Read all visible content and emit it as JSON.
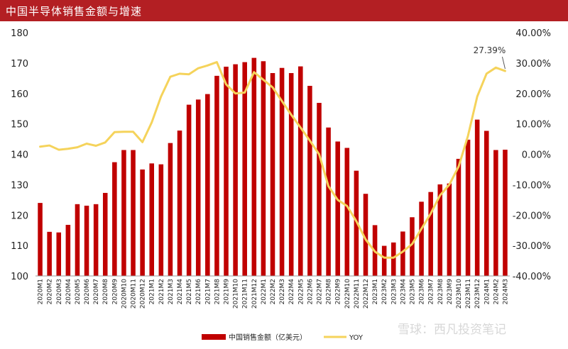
{
  "header": {
    "title": "中国半导体销售金额与增速"
  },
  "watermark": {
    "text": "雪球：西凡投资笔记"
  },
  "chart_data": {
    "type": "bar",
    "title": "中国半导体销售金额与增速",
    "categories": [
      "2020M1",
      "2020M2",
      "2020M3",
      "2020M4",
      "2020M5",
      "2020M6",
      "2020M7",
      "2020M8",
      "2020M9",
      "2020M10",
      "2020M11",
      "2020M12",
      "2021M1",
      "2021M2",
      "2021M3",
      "2021M4",
      "2021M5",
      "2021M6",
      "2021M7",
      "2021M8",
      "2021M9",
      "2021M10",
      "2021M11",
      "2021M12",
      "2022M1",
      "2022M2",
      "2022M3",
      "2022M4",
      "2022M5",
      "2022M6",
      "2022M7",
      "2022M8",
      "2022M9",
      "2022M10",
      "2022M11",
      "2022M12",
      "2023M1",
      "2023M2",
      "2023M3",
      "2023M4",
      "2023M5",
      "2023M6",
      "2023M7",
      "2023M8",
      "2023M9",
      "2023M10",
      "2023M11",
      "2023M12",
      "2024M1",
      "2024M2",
      "2024M3"
    ],
    "series": [
      {
        "name": "中国销售金额（亿美元）",
        "type": "bar",
        "axis": "left",
        "color": "#c00000",
        "values": [
          124,
          114.5,
          114.3,
          116.8,
          123.6,
          123.1,
          123.6,
          127.3,
          137.4,
          141.4,
          141.4,
          135.0,
          137.0,
          136.7,
          143.7,
          147.8,
          156.3,
          158.0,
          159.8,
          165.8,
          168.8,
          169.6,
          170.3,
          171.7,
          170.6,
          166.7,
          168.4,
          166.7,
          168.9,
          162.5,
          156.9,
          148.8,
          144.2,
          142.1,
          134.6,
          127.0,
          116.7,
          109.9,
          111.0,
          114.6,
          119.3,
          124.4,
          127.6,
          130.1,
          130.4,
          138.5,
          144.8,
          151.4,
          147.7,
          141.4,
          141.5
        ]
      },
      {
        "name": "YOY",
        "type": "line",
        "axis": "right",
        "color": "#f5d35b",
        "values": [
          2.5,
          2.9,
          1.5,
          1.8,
          2.3,
          3.5,
          2.8,
          3.9,
          7.3,
          7.4,
          7.4,
          4.0,
          10.5,
          19.0,
          25.5,
          26.5,
          26.3,
          28.3,
          29.2,
          30.3,
          23.0,
          20.0,
          20.3,
          27.0,
          24.5,
          22.0,
          17.5,
          13.0,
          8.8,
          4.5,
          0.0,
          -10.5,
          -15.0,
          -17.0,
          -22.0,
          -28.0,
          -32.0,
          -34.0,
          -34.0,
          -32.0,
          -29.5,
          -24.5,
          -19.5,
          -13.5,
          -10.0,
          -4.0,
          6.0,
          19.0,
          26.5,
          28.5,
          27.39
        ]
      }
    ],
    "y_left": {
      "min": 100,
      "max": 180,
      "ticks": [
        "100",
        "110",
        "120",
        "130",
        "140",
        "150",
        "160",
        "170",
        "180"
      ]
    },
    "y_right": {
      "min": -40,
      "max": 40,
      "ticks": [
        "-40.00%",
        "-30.00%",
        "-20.00%",
        "-10.00%",
        "0.00%",
        "10.00%",
        "20.00%",
        "30.00%",
        "40.00%"
      ]
    },
    "annotations": [
      {
        "text": "27.39%",
        "category": "2024M3",
        "series": "YOY",
        "value": 27.39
      }
    ],
    "legend": {
      "position": "bottom",
      "items": [
        "中国销售金额（亿美元）",
        "YOY"
      ]
    },
    "grid": false
  }
}
